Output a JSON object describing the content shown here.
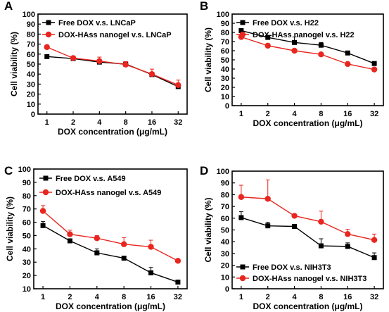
{
  "chart_data": [
    {
      "type": "line",
      "panel_label": "A",
      "xlabel": "DOX concentration (μg/mL)",
      "ylabel": "Cell viability (%)",
      "categories": [
        "1",
        "2",
        "4",
        "8",
        "16",
        "32"
      ],
      "ylim": [
        0,
        100
      ],
      "yticks": [
        "0",
        "10",
        "20",
        "30",
        "40",
        "50",
        "60",
        "70",
        "80",
        "90",
        "100"
      ],
      "legend_position": "top-left",
      "series": [
        {
          "name": "Free DOX v.s. LNCaP",
          "color": "#000000",
          "marker": "square",
          "values": [
            57.5,
            55.5,
            52,
            50,
            39.5,
            27.5
          ],
          "errors": [
            2,
            1,
            2,
            1,
            2,
            2
          ]
        },
        {
          "name": "DOX-HAss nanogel v.s. LNCaP",
          "color": "#e8261f",
          "marker": "circle",
          "values": [
            67,
            56,
            53,
            49.5,
            40,
            29
          ],
          "errors": [
            2,
            2,
            4,
            3,
            5,
            5
          ]
        }
      ]
    },
    {
      "type": "line",
      "panel_label": "B",
      "xlabel": "DOX concentration (μg/mL)",
      "ylabel": "Cell viability (%)",
      "categories": [
        "1",
        "2",
        "4",
        "8",
        "16",
        "32"
      ],
      "ylim": [
        0,
        100
      ],
      "yticks": [
        "0",
        "10",
        "20",
        "30",
        "40",
        "50",
        "60",
        "70",
        "80",
        "90",
        "100"
      ],
      "legend_position": "top-left",
      "series": [
        {
          "name": "Free DOX  v.s. H22",
          "color": "#000000",
          "marker": "square",
          "values": [
            82,
            74.5,
            69,
            66,
            57.5,
            46
          ],
          "errors": [
            2,
            1,
            6,
            3,
            2,
            1
          ]
        },
        {
          "name": "DOX-HAss nanogel v.s. H22",
          "color": "#e8261f",
          "marker": "circle",
          "values": [
            75,
            65.5,
            60,
            56,
            45.5,
            39.5
          ],
          "errors": [
            2,
            2,
            1,
            1,
            1,
            1
          ]
        }
      ]
    },
    {
      "type": "line",
      "panel_label": "C",
      "xlabel": "DOX concentration (μg/mL)",
      "ylabel": "Cell viability (%)",
      "categories": [
        "1",
        "2",
        "4",
        "8",
        "16",
        "32"
      ],
      "ylim": [
        10,
        100
      ],
      "yticks": [
        "10",
        "20",
        "30",
        "40",
        "50",
        "60",
        "70",
        "80",
        "90",
        "100"
      ],
      "legend_position": "top-left",
      "series": [
        {
          "name": "Free DOX v.s. A549",
          "color": "#000000",
          "marker": "square",
          "values": [
            57.5,
            46,
            37,
            33,
            22,
            15
          ],
          "errors": [
            3,
            1,
            3,
            1,
            4,
            1
          ]
        },
        {
          "name": "DOX-HAss nanogel v.s. A549",
          "color": "#e8261f",
          "marker": "circle",
          "values": [
            68.5,
            51,
            48,
            43.5,
            41.5,
            31
          ],
          "errors": [
            4,
            3,
            2,
            5,
            5,
            1
          ]
        }
      ]
    },
    {
      "type": "line",
      "panel_label": "D",
      "xlabel": "DOX concentration (μg/mL)",
      "ylabel": "Cell viability (%)",
      "categories": [
        "1",
        "2",
        "4",
        "8",
        "16",
        "32"
      ],
      "ylim": [
        0,
        100
      ],
      "yticks": [
        "0",
        "10",
        "20",
        "30",
        "40",
        "50",
        "60",
        "70",
        "80",
        "90",
        "100"
      ],
      "legend_position": "bottom-left",
      "series": [
        {
          "name": "Free DOX v.s. NIH3T3",
          "color": "#000000",
          "marker": "square",
          "values": [
            60.5,
            53.5,
            53,
            36.5,
            36,
            26.5
          ],
          "errors": [
            5,
            3,
            1,
            6,
            3,
            4
          ]
        },
        {
          "name": "DOX-HAss nanogel v.s. NIH3T3",
          "color": "#e8261f",
          "marker": "circle",
          "values": [
            78,
            76.5,
            62,
            57,
            46.5,
            41.5
          ],
          "errors": [
            10,
            16,
            0,
            9,
            4,
            5
          ]
        }
      ]
    }
  ]
}
